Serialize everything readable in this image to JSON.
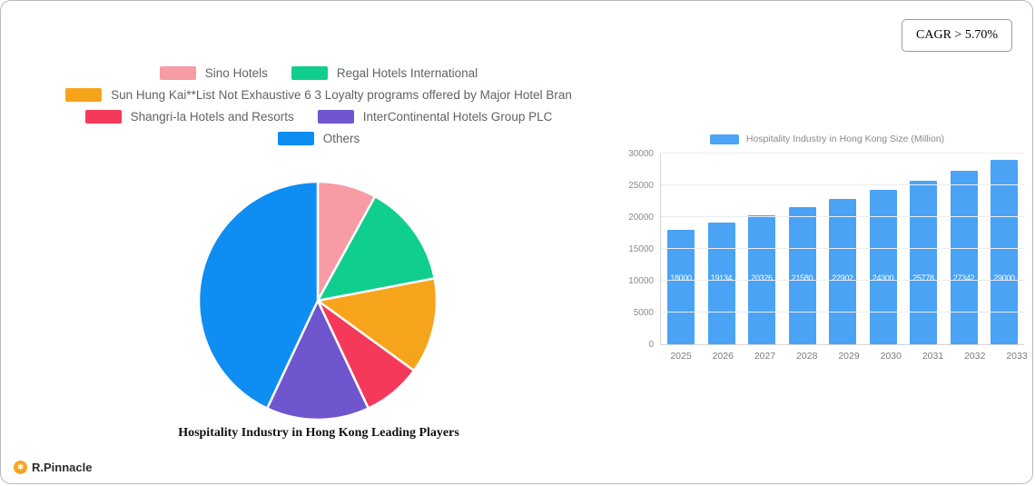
{
  "cagr": {
    "label": "CAGR > 5.70%"
  },
  "logo": {
    "text": "R.Pinnacle"
  },
  "chart_data": [
    {
      "type": "pie",
      "title": "Hospitality Industry in Hong Kong Leading Players",
      "labels": [
        "Sino Hotels",
        "Regal Hotels International",
        "Sun Hung Kai**List Not Exhaustive  6 3 Loyalty programs offered by Major Hotel Bran",
        "Shangri-la Hotels and Resorts",
        "InterContinental Hotels Group PLC",
        "Others"
      ],
      "values": [
        8,
        14,
        13,
        8,
        14,
        43
      ],
      "colors": [
        "#f79ba5",
        "#10ce8e",
        "#f7a41d",
        "#f5395a",
        "#6f56cf",
        "#0e8df2"
      ],
      "legend_rows": [
        [
          0,
          1
        ],
        [
          2
        ],
        [
          3,
          4
        ],
        [
          5
        ]
      ],
      "legend_position": "top"
    },
    {
      "type": "bar",
      "legend": "Hospitality Industry in Hong Kong Size (Million)",
      "categories": [
        "2025",
        "2026",
        "2027",
        "2028",
        "2029",
        "2030",
        "2031",
        "2032",
        "2033"
      ],
      "values": [
        18000,
        19134,
        20326,
        21580,
        22902,
        24300,
        25778,
        27342,
        29000
      ],
      "ylim": [
        0,
        30000
      ],
      "yticks": [
        0,
        5000,
        10000,
        15000,
        20000,
        25000,
        30000
      ],
      "bar_color": "#4aa3f4",
      "grid": true,
      "legend_position": "top"
    }
  ]
}
